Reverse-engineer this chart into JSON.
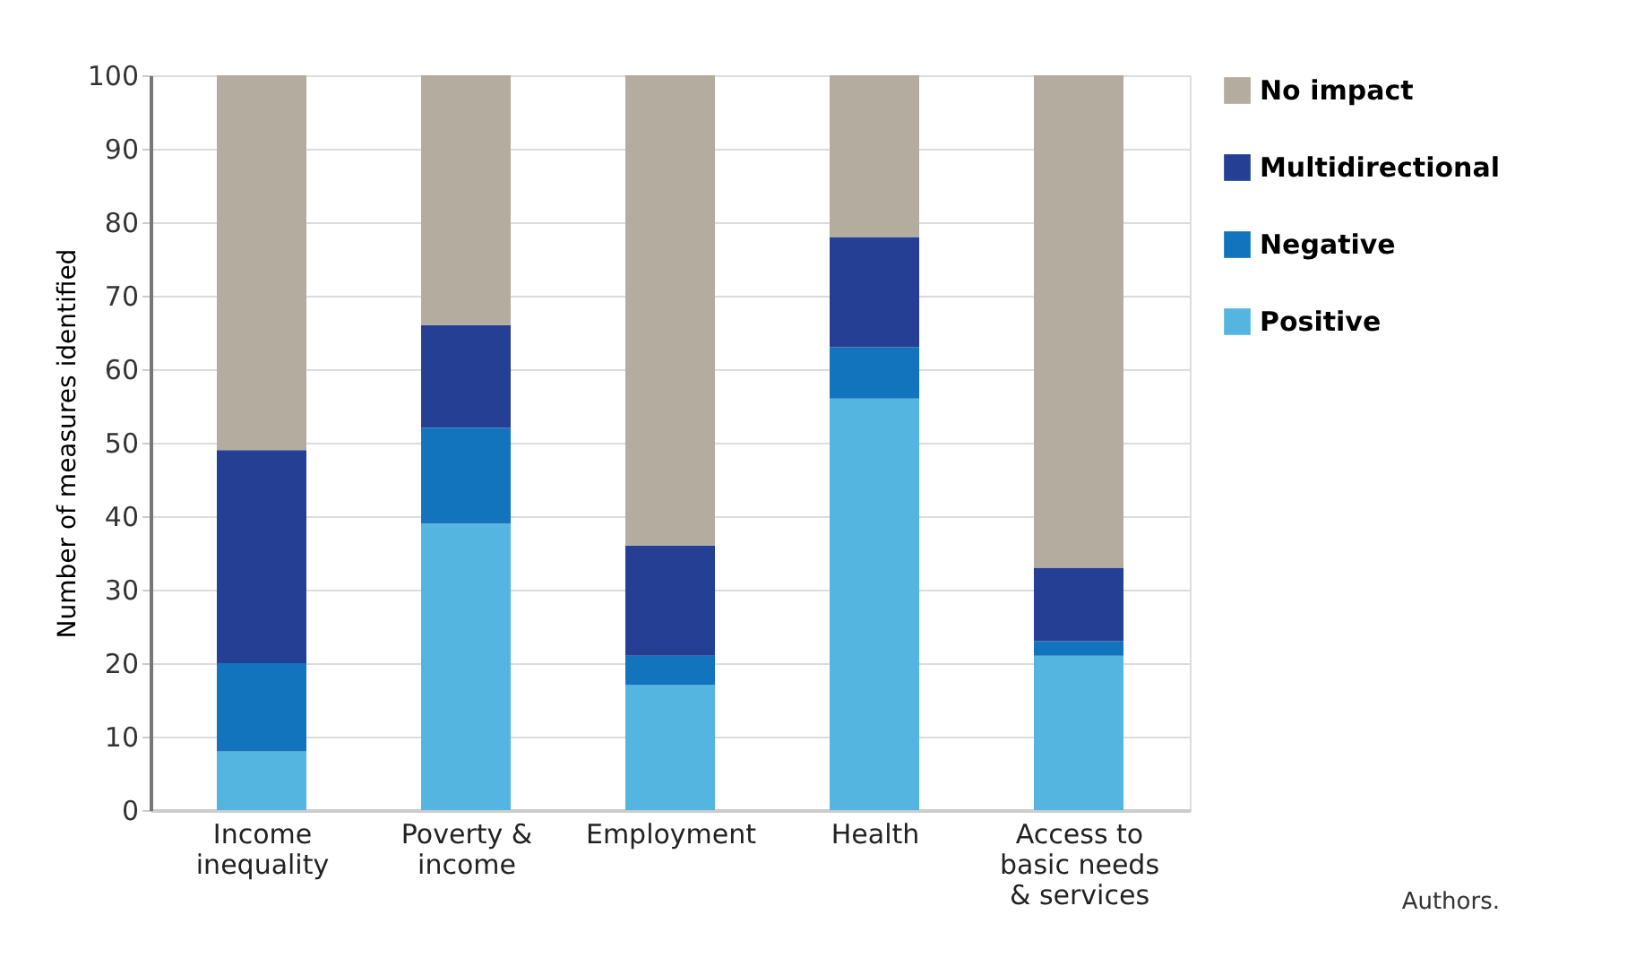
{
  "chart_data": {
    "type": "bar",
    "stacked": true,
    "ylabel": "Number of measures identified",
    "categories": [
      "Income\ninequality",
      "Poverty &\nincome",
      "Employment",
      "Health",
      "Access to\nbasic needs\n& services"
    ],
    "series": [
      {
        "name": "Positive",
        "color": "#54b6e0",
        "values": [
          8,
          39,
          17,
          56,
          21
        ]
      },
      {
        "name": "Negative",
        "color": "#1174bc",
        "values": [
          12,
          13,
          4,
          7,
          2
        ]
      },
      {
        "name": "Multidirectional",
        "color": "#243f94",
        "values": [
          29,
          14,
          15,
          15,
          10
        ]
      },
      {
        "name": "No impact",
        "color": "#b3ac9f",
        "values": [
          51,
          34,
          64,
          22,
          67
        ]
      }
    ],
    "ylim": [
      0,
      100
    ],
    "yticks": [
      0,
      10,
      20,
      30,
      40,
      50,
      60,
      70,
      80,
      90,
      100
    ],
    "grid": "y",
    "legend": "right",
    "annotations": [
      "Authors."
    ]
  }
}
